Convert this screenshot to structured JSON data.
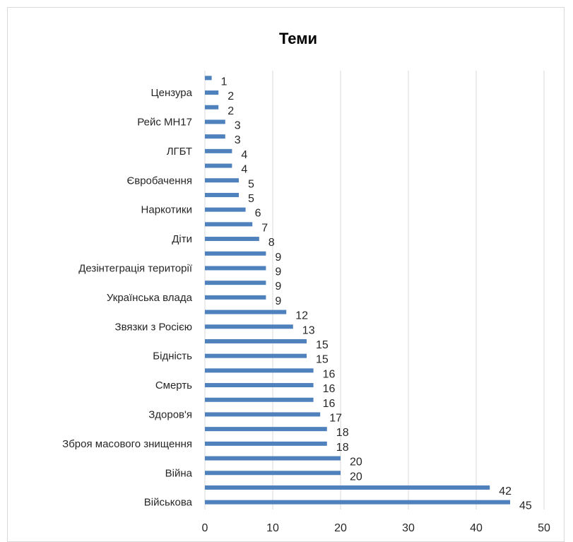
{
  "chart_data": {
    "type": "bar",
    "orientation": "horizontal",
    "title": "Теми",
    "xlim": [
      0,
      50
    ],
    "x_ticks": [
      0,
      10,
      20,
      30,
      40,
      50
    ],
    "grid": "vertical",
    "categories": [
      "",
      "Цензура",
      "",
      "Рейс MH17",
      "",
      "ЛГБТ",
      "",
      "Євробачення",
      "",
      "Наркотики",
      "",
      "Діти",
      "",
      "Дезінтеграція території",
      "",
      "Українська влада",
      "",
      "Звязки з Росією",
      "",
      "Бідність",
      "",
      "Смерть",
      "",
      "Здоров'я",
      "",
      "Зброя масового знищення",
      "",
      "Війна",
      "",
      "Військова"
    ],
    "values": [
      1,
      2,
      2,
      3,
      3,
      4,
      4,
      5,
      5,
      6,
      7,
      8,
      9,
      9,
      9,
      9,
      12,
      13,
      15,
      15,
      16,
      16,
      16,
      17,
      18,
      18,
      20,
      20,
      42,
      45
    ],
    "colors": {
      "bar": "#4f81bd",
      "grid": "#d9d9d9",
      "text": "#262626"
    }
  }
}
